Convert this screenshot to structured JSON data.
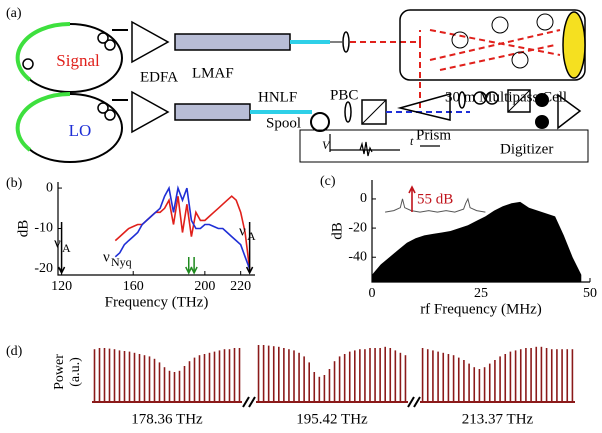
{
  "diagram": {
    "panel": "(a)",
    "signal": "Signal",
    "lo": "LO",
    "edfa": "EDFA",
    "lmaf": "LMAF",
    "hnlf": "HNLF",
    "spool": "Spool",
    "pbc": "PBC",
    "cell": "30 m Multipass Cell",
    "prism": "Prism",
    "digitizer": "Digitizer",
    "v": "V",
    "t": "t"
  },
  "chart_data": [
    {
      "type": "line",
      "panel": "(b)",
      "xlabel": "Frequency (THz)",
      "ylabel": "dB",
      "xlim": [
        118,
        228
      ],
      "ylim": [
        -21.5,
        1.5
      ],
      "xticks": [
        120,
        160,
        200,
        220
      ],
      "yticks": [
        0,
        -10,
        -20
      ],
      "x": [
        150,
        152.5,
        155,
        157.5,
        160,
        162.5,
        165,
        167.5,
        170,
        172.5,
        175,
        177.5,
        180,
        182.5,
        185,
        187.5,
        190,
        192.5,
        195,
        197.5,
        200,
        202.5,
        205,
        207.5,
        210,
        212.5,
        215,
        217.5,
        220,
        222.5,
        225
      ],
      "series": [
        {
          "color": "#e0201b",
          "values": [
            -13,
            -12,
            -11,
            -10,
            -9.5,
            -9,
            -9,
            -8,
            -7,
            -6,
            -6,
            -5,
            -3,
            -9,
            -2,
            -11,
            -4,
            -12,
            -6,
            -8,
            -8,
            -7,
            -6,
            -5,
            -4,
            -3,
            -2,
            -3,
            -6,
            -11,
            -20
          ]
        },
        {
          "color": "#1f2fd6",
          "values": [
            -17,
            -16,
            -14,
            -13,
            -12,
            -11,
            -9,
            -8,
            -7,
            -6,
            -5,
            -2,
            0,
            -6,
            0,
            -3,
            0,
            -8,
            -10,
            -10,
            -9,
            -9,
            -9.5,
            -10,
            -10,
            -11,
            -12,
            -13,
            -14,
            -17,
            -20
          ]
        }
      ],
      "arrows": [
        {
          "x": 120,
          "color": "#000000"
        },
        {
          "x": 225,
          "color": "#000000"
        },
        {
          "x": 191,
          "color": "#1f8a1f"
        },
        {
          "x": 194,
          "color": "#1f8a1f"
        }
      ],
      "annotations": [
        {
          "main": "ν",
          "sub": "A"
        },
        {
          "main": "ν",
          "sub": "Nyq"
        },
        {
          "main": "ν",
          "sub": "A"
        }
      ]
    },
    {
      "type": "area",
      "panel": "(c)",
      "xlabel": "rf Frequency (MHz)",
      "ylabel": "dB",
      "xlim": [
        0,
        50
      ],
      "ylim": [
        -57,
        13
      ],
      "xticks": [
        0,
        25,
        50
      ],
      "yticks": [
        0,
        -20,
        -40
      ],
      "series": [
        {
          "color": "#000000",
          "x": [
            0,
            2,
            4,
            6,
            8,
            10,
            12,
            14,
            16,
            18,
            20,
            22,
            24,
            26,
            28,
            30,
            32,
            34,
            36,
            38,
            40,
            42,
            44,
            46,
            48
          ],
          "values": [
            -52,
            -45,
            -40,
            -35,
            -30,
            -27,
            -25,
            -24,
            -23,
            -22,
            -20,
            -18,
            -15,
            -12,
            -8,
            -5,
            -3,
            -2,
            -6,
            -8,
            -10,
            -12,
            -25,
            -40,
            -52
          ]
        },
        {
          "color": "#555555",
          "x": [
            3,
            5,
            6.5,
            7,
            7.5,
            9,
            11,
            13,
            15,
            17,
            19,
            21,
            21.5,
            22,
            22.5,
            24,
            26
          ],
          "values": [
            -9,
            -8,
            -6,
            0,
            -6,
            -8,
            -9,
            -8,
            -9,
            -8,
            -9,
            -7,
            -3,
            0,
            -6,
            -8,
            -9
          ]
        }
      ],
      "annotations": [
        "55 dB"
      ]
    },
    {
      "type": "comb",
      "panel": "(d)",
      "ylabel": [
        "Power",
        "(a.u.)"
      ],
      "ylim": [
        0,
        1
      ],
      "color": "#8b1a1a",
      "segments": [
        {
          "label": "178.36 THz",
          "values": [
            0.88,
            0.9,
            0.9,
            0.89,
            0.88,
            0.86,
            0.85,
            0.84,
            0.82,
            0.8,
            0.78,
            0.76,
            0.72,
            0.66,
            0.58,
            0.52,
            0.5,
            0.52,
            0.6,
            0.68,
            0.74,
            0.78,
            0.8,
            0.82,
            0.84,
            0.86,
            0.88,
            0.88,
            0.9,
            0.9
          ]
        },
        {
          "label": "195.42 THz",
          "values": [
            0.95,
            0.95,
            0.94,
            0.93,
            0.92,
            0.9,
            0.88,
            0.86,
            0.82,
            0.76,
            0.66,
            0.5,
            0.42,
            0.45,
            0.55,
            0.68,
            0.76,
            0.8,
            0.84,
            0.86,
            0.88,
            0.88,
            0.9,
            0.9,
            0.9,
            0.92,
            0.9,
            0.86,
            0.82,
            0.78
          ]
        },
        {
          "label": "213.37 THz",
          "values": [
            0.9,
            0.88,
            0.86,
            0.84,
            0.82,
            0.8,
            0.78,
            0.74,
            0.7,
            0.64,
            0.58,
            0.55,
            0.58,
            0.64,
            0.7,
            0.76,
            0.8,
            0.84,
            0.86,
            0.88,
            0.9,
            0.9,
            0.92,
            0.92,
            0.9,
            0.88,
            0.88,
            0.88,
            0.88,
            0.88
          ]
        }
      ]
    }
  ]
}
